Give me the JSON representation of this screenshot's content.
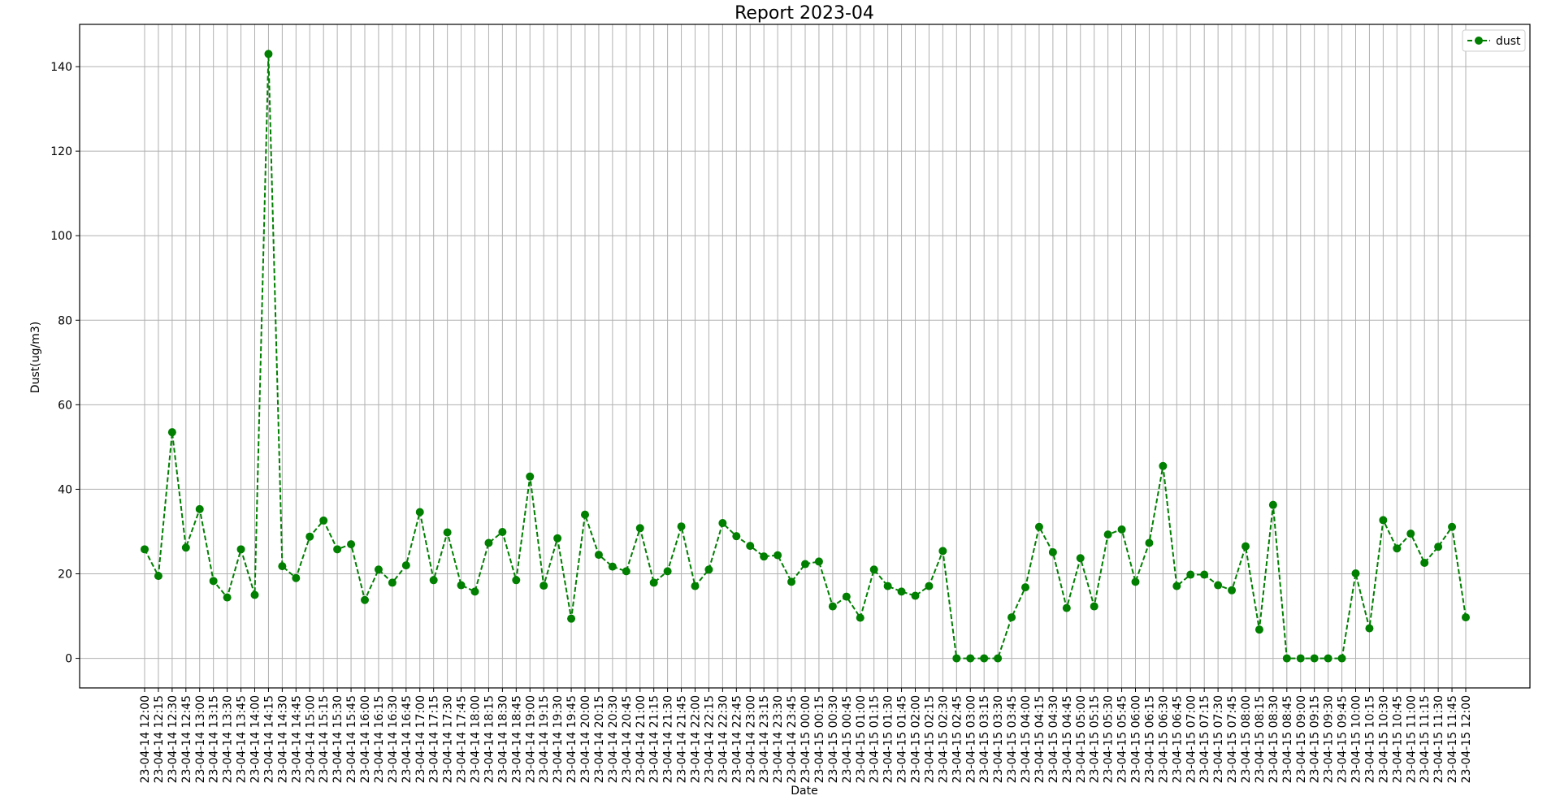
{
  "chart_data": {
    "type": "line",
    "title": "Report 2023-04",
    "xlabel": "Date",
    "ylabel": "Dust(ug/m3)",
    "ylim": [
      -7,
      150
    ],
    "yticks": [
      0,
      20,
      40,
      60,
      80,
      100,
      120,
      140
    ],
    "grid": true,
    "legend_position": "top-right",
    "colors": {
      "series": "#007f00"
    },
    "categories": [
      "23-04-14 12:00",
      "23-04-14 12:15",
      "23-04-14 12:30",
      "23-04-14 12:45",
      "23-04-14 13:00",
      "23-04-14 13:15",
      "23-04-14 13:30",
      "23-04-14 13:45",
      "23-04-14 14:00",
      "23-04-14 14:15",
      "23-04-14 14:30",
      "23-04-14 14:45",
      "23-04-14 15:00",
      "23-04-14 15:15",
      "23-04-14 15:30",
      "23-04-14 15:45",
      "23-04-14 16:00",
      "23-04-14 16:15",
      "23-04-14 16:30",
      "23-04-14 16:45",
      "23-04-14 17:00",
      "23-04-14 17:15",
      "23-04-14 17:30",
      "23-04-14 17:45",
      "23-04-14 18:00",
      "23-04-14 18:15",
      "23-04-14 18:30",
      "23-04-14 18:45",
      "23-04-14 19:00",
      "23-04-14 19:15",
      "23-04-14 19:30",
      "23-04-14 19:45",
      "23-04-14 20:00",
      "23-04-14 20:15",
      "23-04-14 20:30",
      "23-04-14 20:45",
      "23-04-14 21:00",
      "23-04-14 21:15",
      "23-04-14 21:30",
      "23-04-14 21:45",
      "23-04-14 22:00",
      "23-04-14 22:15",
      "23-04-14 22:30",
      "23-04-14 22:45",
      "23-04-14 23:00",
      "23-04-14 23:15",
      "23-04-14 23:30",
      "23-04-14 23:45",
      "23-04-15 00:00",
      "23-04-15 00:15",
      "23-04-15 00:30",
      "23-04-15 00:45",
      "23-04-15 01:00",
      "23-04-15 01:15",
      "23-04-15 01:30",
      "23-04-15 01:45",
      "23-04-15 02:00",
      "23-04-15 02:15",
      "23-04-15 02:30",
      "23-04-15 02:45",
      "23-04-15 03:00",
      "23-04-15 03:15",
      "23-04-15 03:30",
      "23-04-15 03:45",
      "23-04-15 04:00",
      "23-04-15 04:15",
      "23-04-15 04:30",
      "23-04-15 04:45",
      "23-04-15 05:00",
      "23-04-15 05:15",
      "23-04-15 05:30",
      "23-04-15 05:45",
      "23-04-15 06:00",
      "23-04-15 06:15",
      "23-04-15 06:30",
      "23-04-15 06:45",
      "23-04-15 07:00",
      "23-04-15 07:15",
      "23-04-15 07:30",
      "23-04-15 07:45",
      "23-04-15 08:00",
      "23-04-15 08:15",
      "23-04-15 08:30",
      "23-04-15 08:45",
      "23-04-15 09:00",
      "23-04-15 09:15",
      "23-04-15 09:30",
      "23-04-15 09:45",
      "23-04-15 10:00",
      "23-04-15 10:15",
      "23-04-15 10:30",
      "23-04-15 10:45",
      "23-04-15 11:00",
      "23-04-15 11:15",
      "23-04-15 11:30",
      "23-04-15 11:45",
      "23-04-15 12:00"
    ],
    "series": [
      {
        "name": "dust",
        "values": [
          25.8,
          19.5,
          53.5,
          26.2,
          35.3,
          18.3,
          14.4,
          25.8,
          15.0,
          143.0,
          21.8,
          19.0,
          28.8,
          32.6,
          25.8,
          27.0,
          13.8,
          21.0,
          17.9,
          22.0,
          34.6,
          18.5,
          29.8,
          17.3,
          15.8,
          27.3,
          29.9,
          18.5,
          43.0,
          17.2,
          28.4,
          9.4,
          34.0,
          24.5,
          21.7,
          20.6,
          30.8,
          17.9,
          20.6,
          31.2,
          17.1,
          21.0,
          32.0,
          28.9,
          26.6,
          24.1,
          24.4,
          18.1,
          22.3,
          22.9,
          12.3,
          14.6,
          9.6,
          21.0,
          17.1,
          15.8,
          14.8,
          17.1,
          25.4,
          0.0,
          0.0,
          0.0,
          0.0,
          9.7,
          16.8,
          31.1,
          25.1,
          11.9,
          23.7,
          12.3,
          29.3,
          30.5,
          18.1,
          27.3,
          45.5,
          17.1,
          19.8,
          19.8,
          17.3,
          16.1,
          26.5,
          6.8,
          36.3,
          0.0,
          0.0,
          0.0,
          0.0,
          0.0,
          20.1,
          7.1,
          32.7,
          26.0,
          29.5,
          22.6,
          26.4,
          31.1,
          9.7
        ]
      }
    ]
  }
}
